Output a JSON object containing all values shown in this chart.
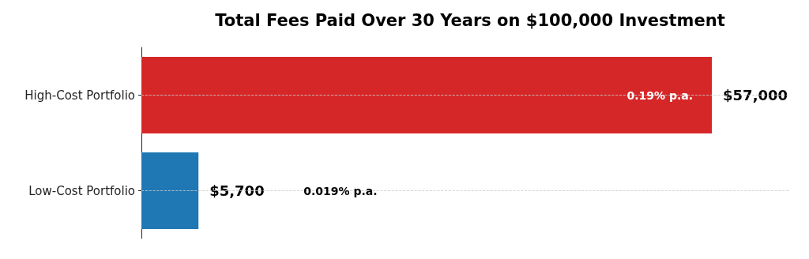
{
  "chart_data": {
    "type": "bar",
    "orientation": "horizontal",
    "title": "Total Fees Paid Over 30 Years on $100,000 Investment",
    "categories": [
      "High-Cost Portfolio",
      "Low-Cost Portfolio"
    ],
    "values": [
      57000,
      5700
    ],
    "colors": [
      "#d62728",
      "#1f77b4"
    ],
    "tick_labels": "y",
    "value_labels": [
      "$57,000",
      "$5,700"
    ],
    "annotations": [
      "0.19% p.a.",
      "0.019% p.a."
    ],
    "grid": "y"
  }
}
